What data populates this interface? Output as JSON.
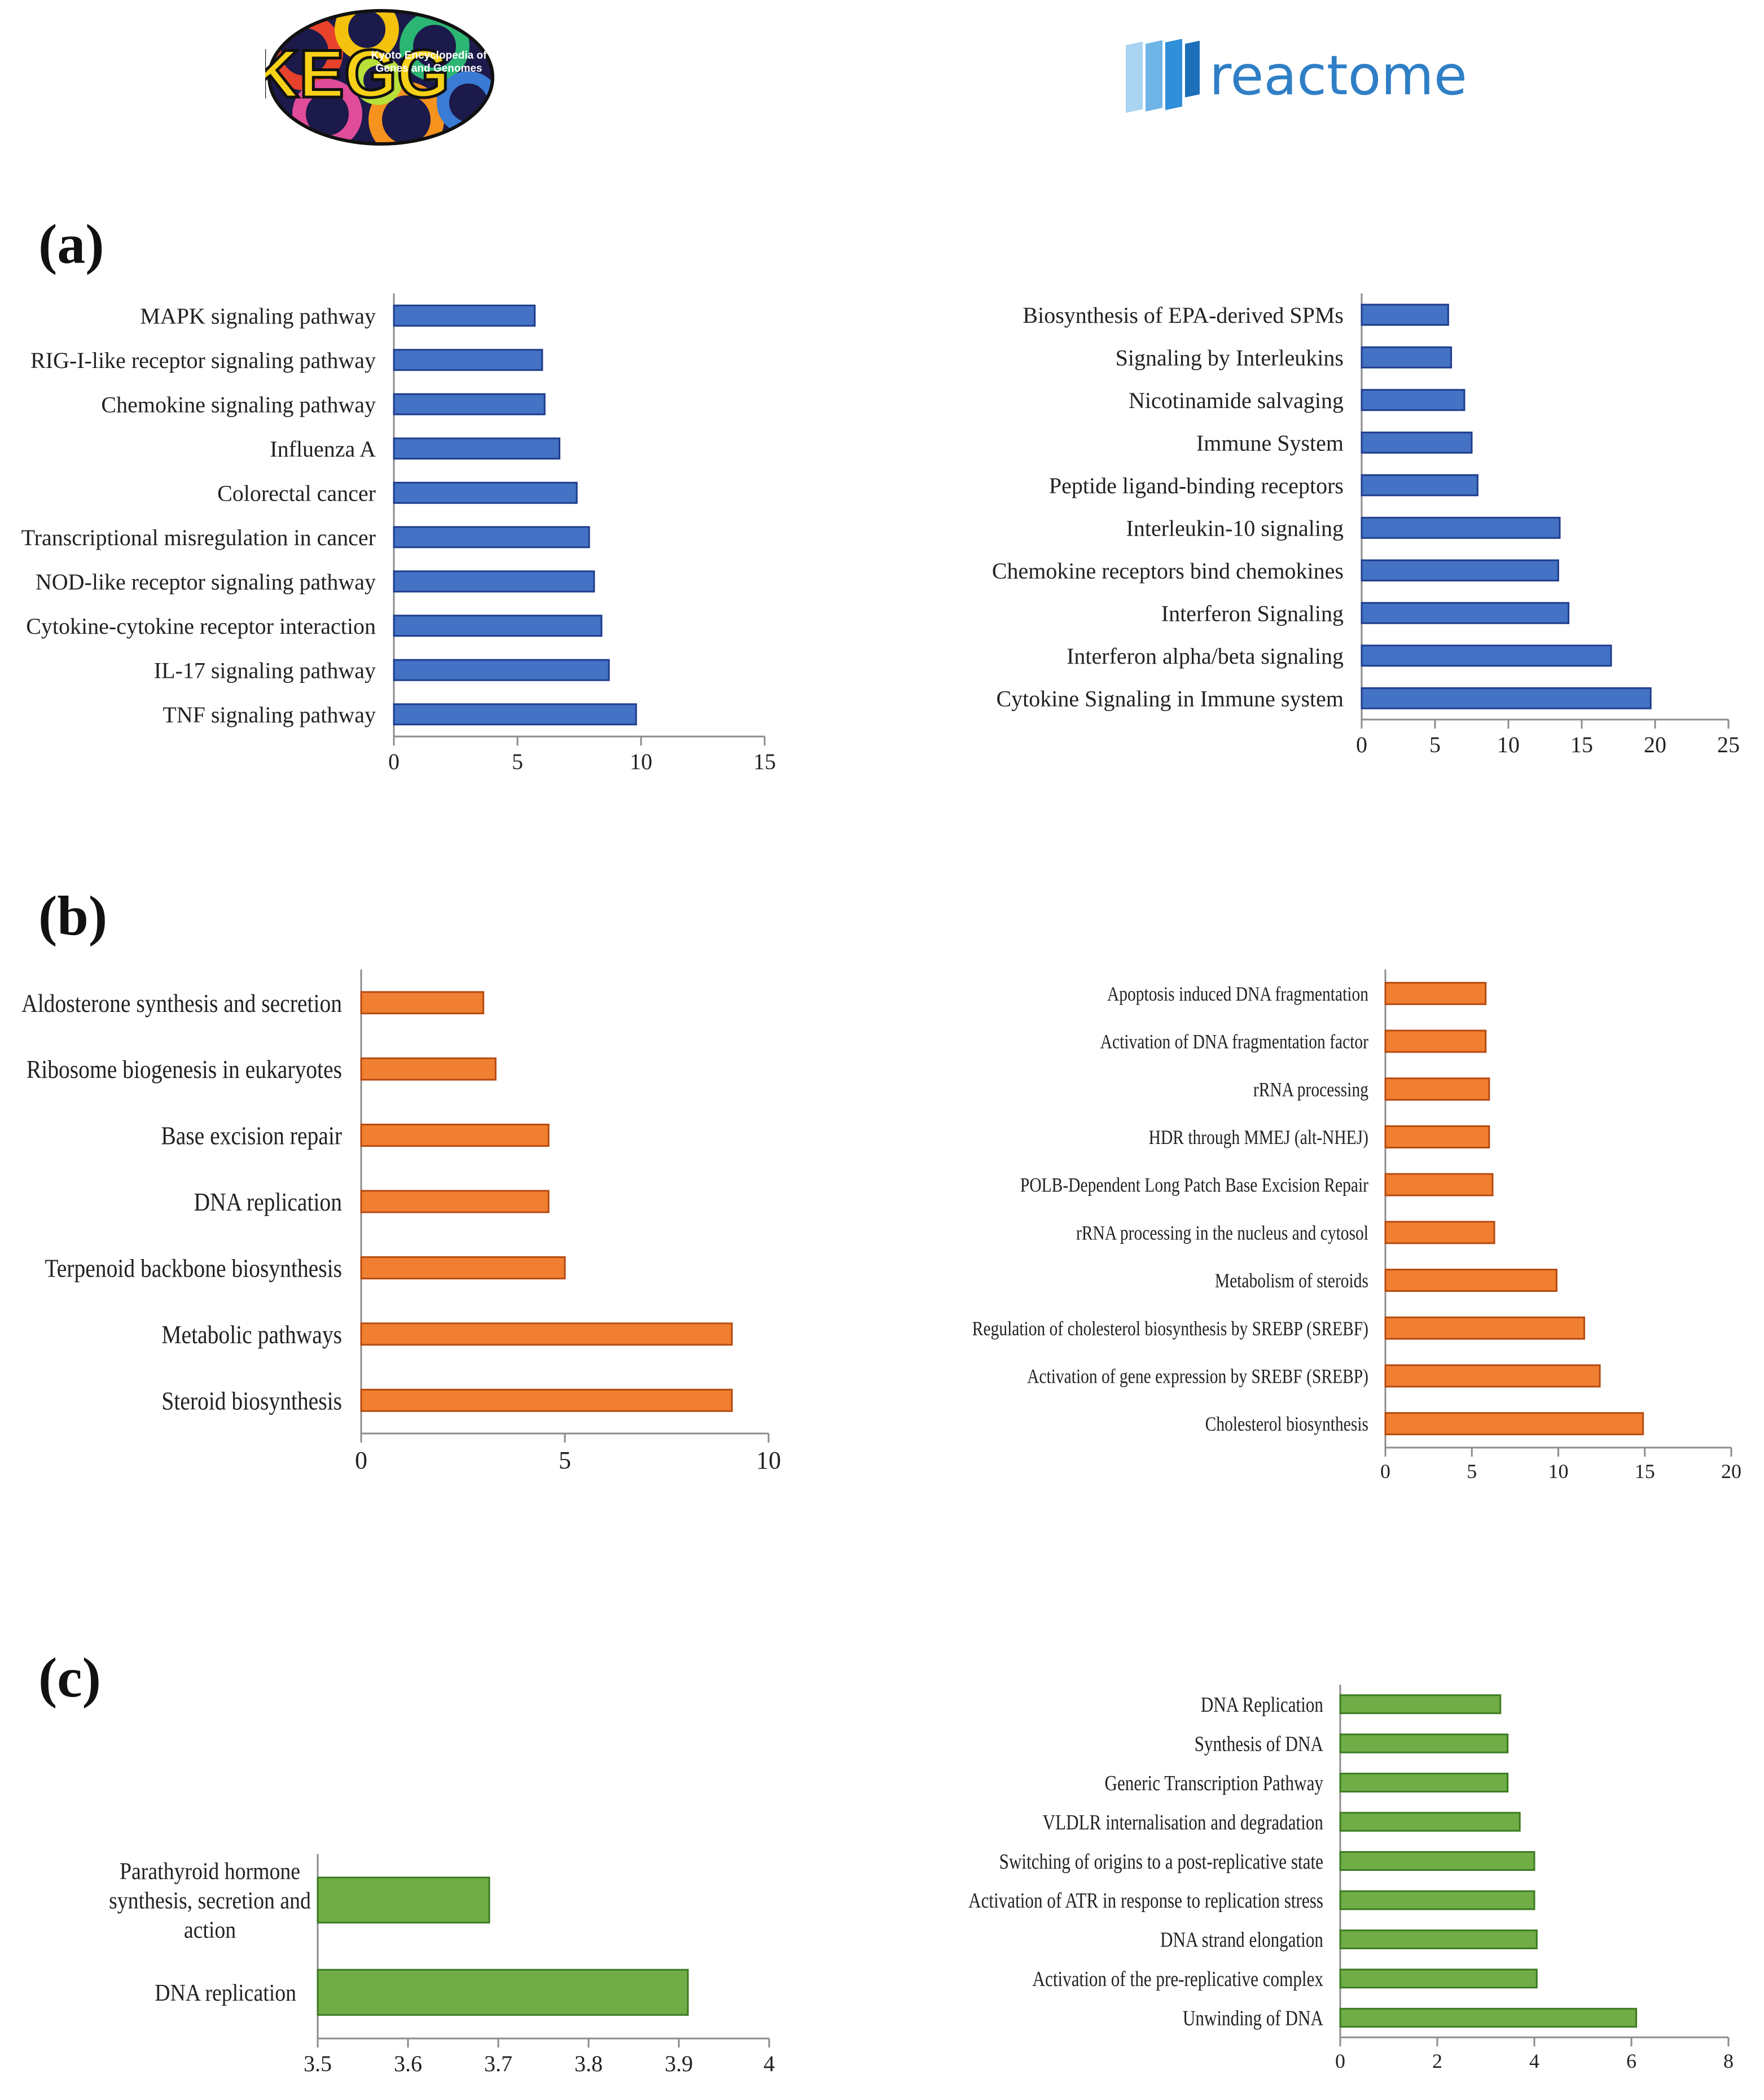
{
  "logos": {
    "kegg": {
      "letters": "KEGG",
      "subtitle_line1": "Kyoto Encyclopedia of",
      "subtitle_line2": "Genes and Genomes"
    },
    "reactome": {
      "name": "reactome"
    }
  },
  "panels": {
    "a": "(a)",
    "b": "(b)",
    "c": "(c)"
  },
  "colors": {
    "blue": "#4472C4",
    "blue_stroke": "#1F3D8C",
    "orange": "#F07F32",
    "orange_stroke": "#B54A10",
    "green": "#70AD47",
    "green_stroke": "#3C7A22",
    "axis": "#8c8c8c"
  },
  "chart_data": [
    {
      "id": "kegg-a",
      "type": "bar",
      "orientation": "horizontal",
      "title": "",
      "categories": [
        "MAPK signaling pathway",
        "RIG-I-like receptor signaling pathway",
        "Chemokine signaling pathway",
        "Influenza A",
        "Colorectal cancer",
        "Transcriptional misregulation in cancer",
        "NOD-like receptor signaling pathway",
        "Cytokine-cytokine receptor interaction",
        "IL-17 signaling pathway",
        "TNF signaling pathway"
      ],
      "values": [
        5.7,
        6.0,
        6.1,
        6.7,
        7.4,
        7.9,
        8.1,
        8.4,
        8.7,
        9.8
      ],
      "xlim": [
        0,
        15
      ],
      "ticks": [
        0,
        5,
        10,
        15
      ],
      "tick_labels": [
        "0",
        "5",
        "10",
        "15"
      ],
      "xlabel": "",
      "ylabel": ""
    },
    {
      "id": "reactome-a",
      "type": "bar",
      "orientation": "horizontal",
      "title": "",
      "categories": [
        "Biosynthesis of EPA-derived SPMs",
        "Signaling by Interleukins",
        "Nicotinamide salvaging",
        "Immune System",
        "Peptide ligand-binding receptors",
        "Interleukin-10 signaling",
        "Chemokine receptors bind chemokines",
        "Interferon Signaling",
        "Interferon alpha/beta signaling",
        "Cytokine Signaling in Immune system"
      ],
      "values": [
        5.9,
        6.1,
        7.0,
        7.5,
        7.9,
        13.5,
        13.4,
        14.1,
        17.0,
        19.7
      ],
      "xlim": [
        0,
        25
      ],
      "ticks": [
        0,
        5,
        10,
        15,
        20,
        25
      ],
      "tick_labels": [
        "0",
        "5",
        "10",
        "15",
        "20",
        "25"
      ],
      "xlabel": "",
      "ylabel": ""
    },
    {
      "id": "kegg-b",
      "type": "bar",
      "orientation": "horizontal",
      "title": "",
      "categories": [
        "Aldosterone synthesis and secretion",
        "Ribosome biogenesis in eukaryotes",
        "Base excision repair",
        "DNA replication",
        "Terpenoid backbone biosynthesis",
        "Metabolic pathways",
        "Steroid biosynthesis"
      ],
      "values": [
        3.0,
        3.3,
        4.6,
        4.6,
        5.0,
        9.1,
        9.1
      ],
      "xlim": [
        0,
        10
      ],
      "ticks": [
        0,
        5,
        10
      ],
      "tick_labels": [
        "0",
        "5",
        "10"
      ],
      "xlabel": "",
      "ylabel": ""
    },
    {
      "id": "reactome-b",
      "type": "bar",
      "orientation": "horizontal",
      "title": "",
      "categories": [
        "Apoptosis induced DNA fragmentation",
        "Activation of DNA fragmentation factor",
        "rRNA processing",
        "HDR through MMEJ (alt-NHEJ)",
        "POLB-Dependent Long Patch Base Excision Repair",
        "rRNA processing in the nucleus and cytosol",
        "Metabolism of steroids",
        "Regulation of cholesterol biosynthesis by SREBP (SREBF)",
        "Activation of gene expression by SREBF (SREBP)",
        "Cholesterol biosynthesis"
      ],
      "values": [
        5.8,
        5.8,
        6.0,
        6.0,
        6.2,
        6.3,
        9.9,
        11.5,
        12.4,
        14.9
      ],
      "xlim": [
        0,
        20
      ],
      "ticks": [
        0,
        5,
        10,
        15,
        20
      ],
      "tick_labels": [
        "0",
        "5",
        "10",
        "15",
        "20"
      ],
      "xlabel": "",
      "ylabel": ""
    },
    {
      "id": "kegg-c",
      "type": "bar",
      "orientation": "horizontal",
      "title": "",
      "categories": [
        "Parathyroid hormone synthesis, secretion and action",
        "DNA replication"
      ],
      "category_lines": [
        [
          "Parathyroid hormone",
          "synthesis, secretion and",
          "action"
        ],
        [
          "DNA replication"
        ]
      ],
      "values": [
        3.69,
        3.91
      ],
      "xlim": [
        3.5,
        4
      ],
      "ticks": [
        3.5,
        3.6,
        3.7,
        3.8,
        3.9,
        4
      ],
      "tick_labels": [
        "3.5",
        "3.6",
        "3.7",
        "3.8",
        "3.9",
        "4"
      ],
      "xlabel": "",
      "ylabel": ""
    },
    {
      "id": "reactome-c",
      "type": "bar",
      "orientation": "horizontal",
      "title": "",
      "categories": [
        "DNA Replication",
        "Synthesis of DNA",
        "Generic Transcription Pathway",
        "VLDLR internalisation and degradation",
        "Switching of origins to a post-replicative state",
        "Activation of ATR in response to replication stress",
        "DNA strand elongation",
        "Activation of the pre-replicative complex",
        "Unwinding of DNA"
      ],
      "values": [
        3.3,
        3.45,
        3.45,
        3.7,
        4.0,
        4.0,
        4.05,
        4.05,
        6.1
      ],
      "xlim": [
        0,
        8
      ],
      "ticks": [
        0,
        2,
        4,
        6,
        8
      ],
      "tick_labels": [
        "0",
        "2",
        "4",
        "6",
        "8"
      ],
      "xlabel": "",
      "ylabel": ""
    }
  ]
}
